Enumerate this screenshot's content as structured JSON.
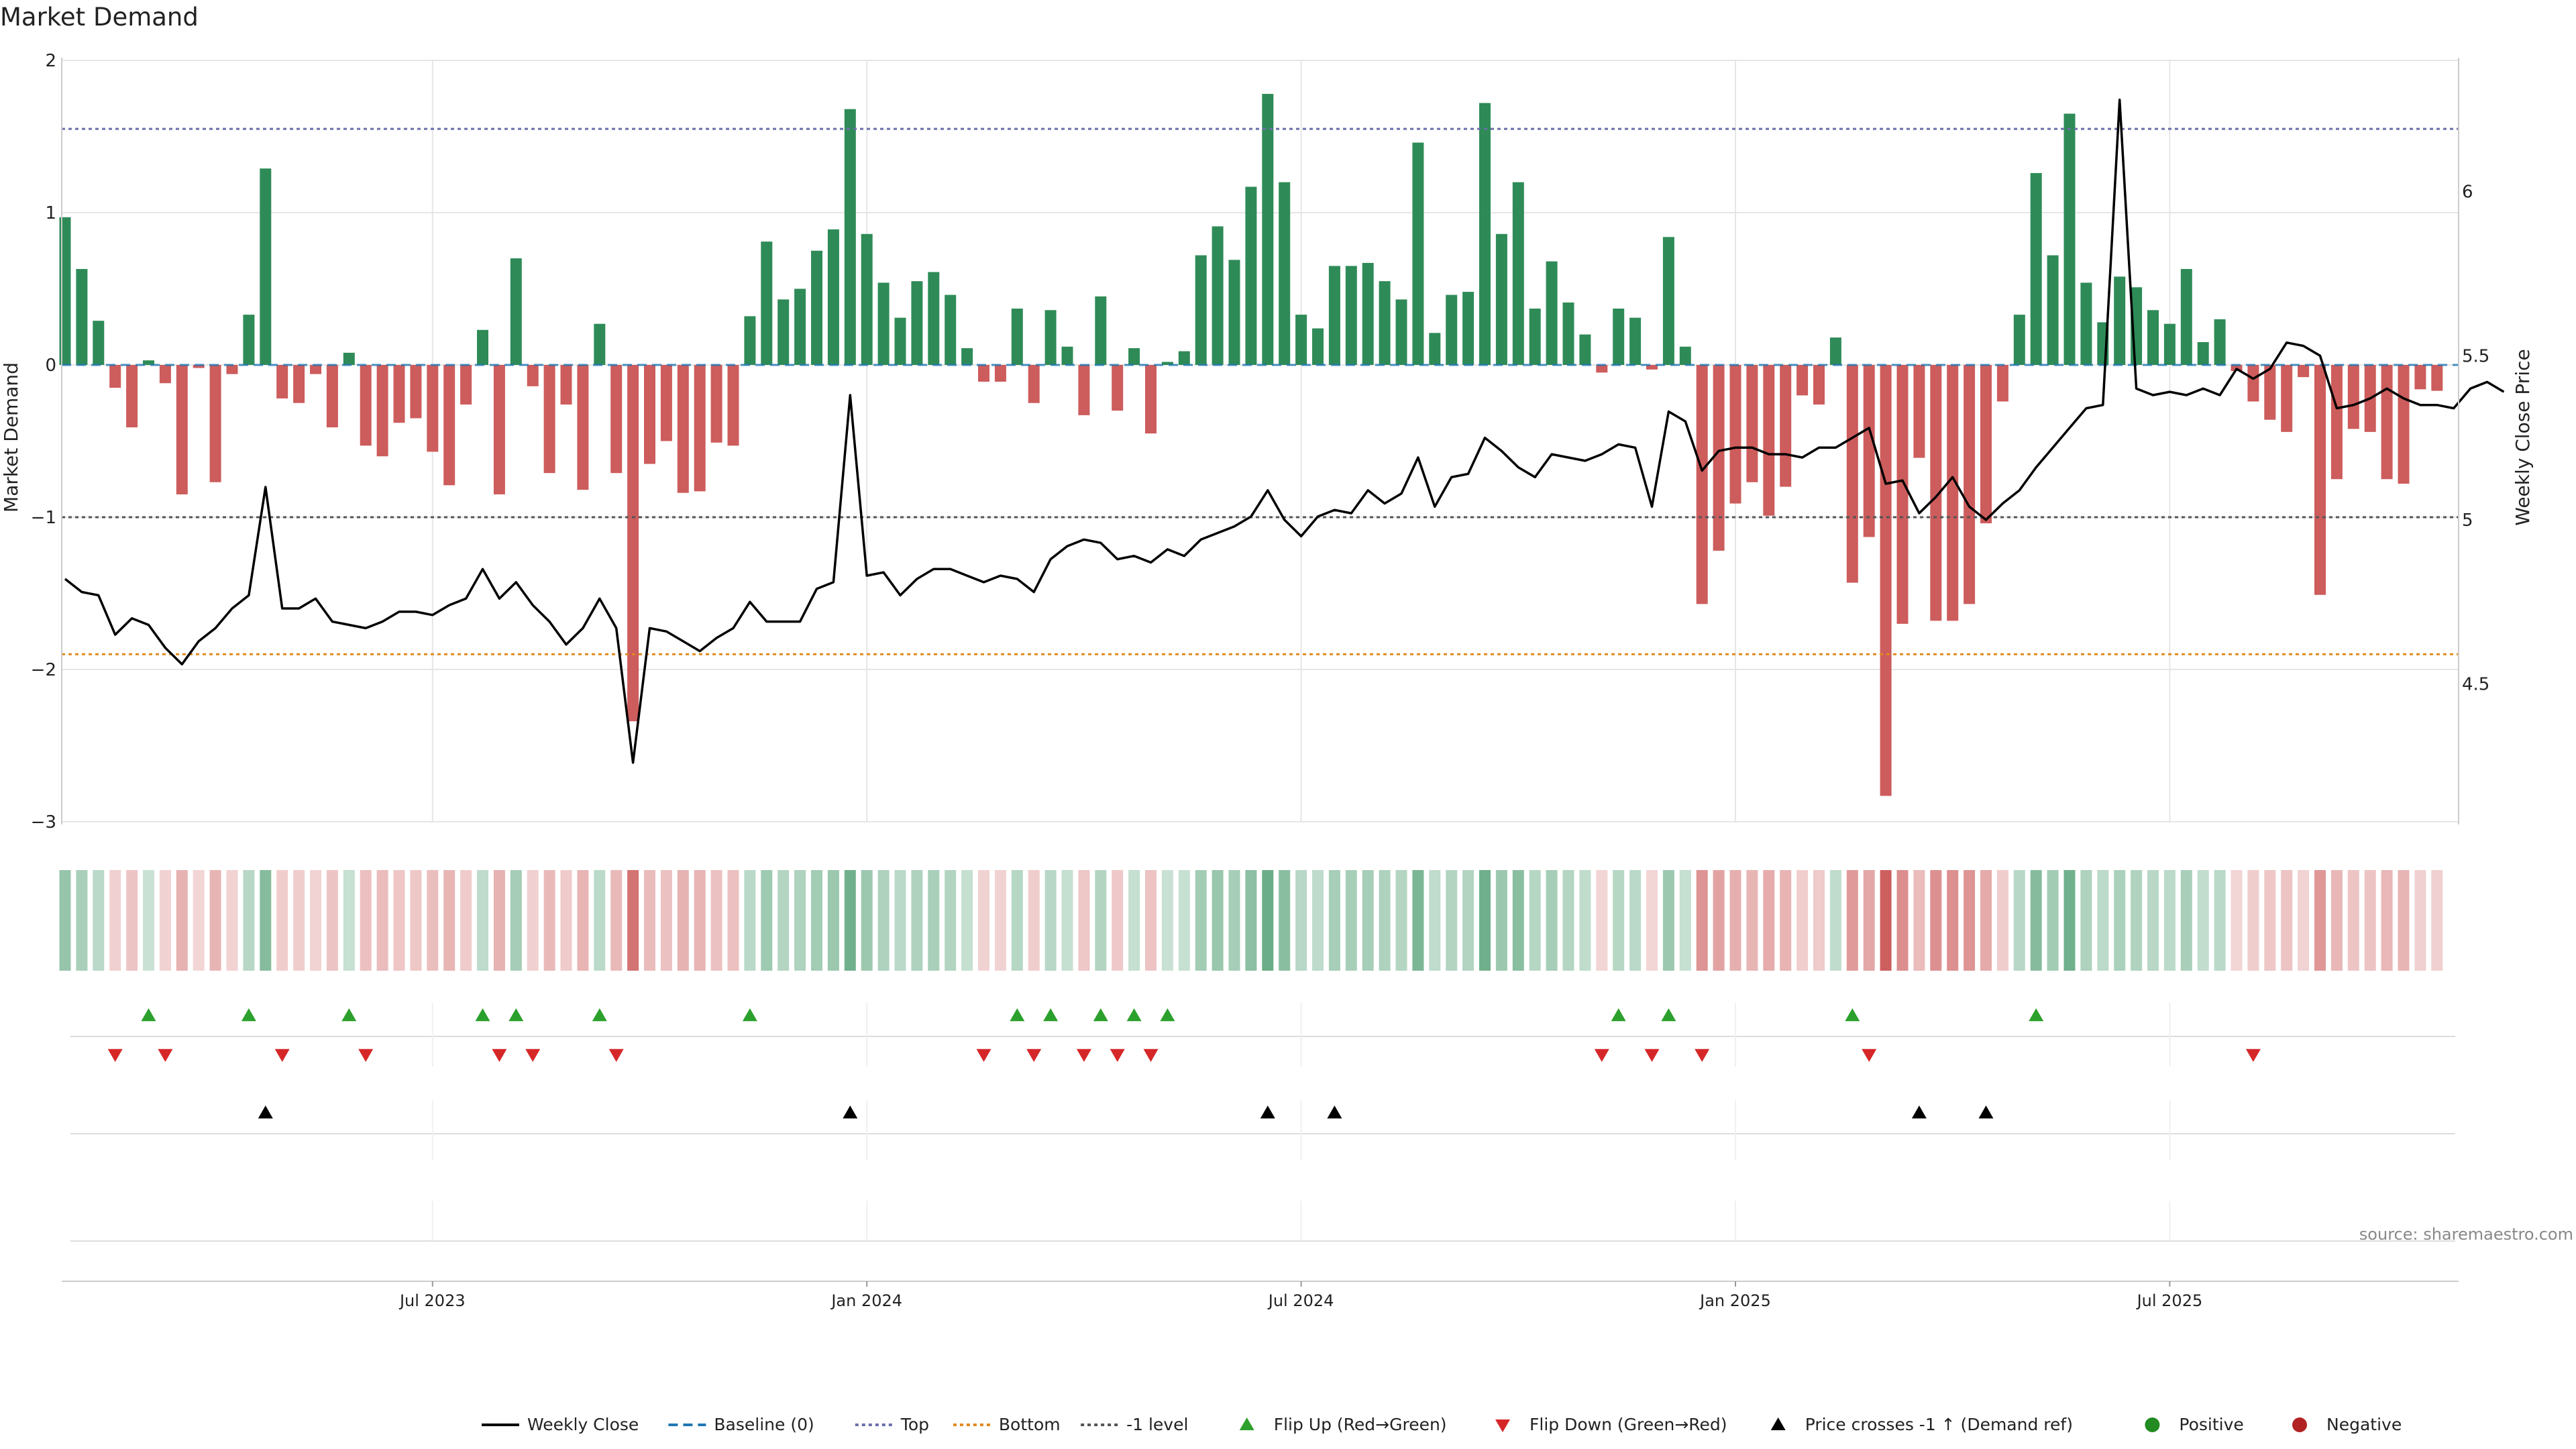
{
  "title": "Market Demand",
  "source": "source: sharemaestro.com",
  "colors": {
    "positive": "#2e8b57",
    "negative": "#cd5c5c",
    "price_line": "#000000",
    "baseline": "#1f77b4",
    "top_line": "#6b6fa8",
    "bottom_line": "#e08a1e",
    "minus1_line": "#555555",
    "flip_up": "#2ca02c",
    "flip_down": "#d62728",
    "cross": "#000000",
    "grid": "#e6e6e6",
    "legend_positive": "#228b22",
    "legend_negative": "#b22222"
  },
  "chart_data": {
    "type": "bar",
    "title": "Market Demand",
    "ylabel": "Market Demand",
    "y2label": "Weekly Close Price",
    "ylim": [
      -3,
      2
    ],
    "y2lim": [
      4.08,
      6.4
    ],
    "yticks": [
      2,
      1,
      0,
      -1,
      -2,
      -3
    ],
    "ytick_labels": [
      "2",
      "1",
      "0",
      "−1",
      "−2",
      "−3"
    ],
    "y2ticks": [
      6,
      5.5,
      5,
      4.5
    ],
    "y2tick_labels": [
      "6",
      "5.5",
      "5",
      "4.5"
    ],
    "xticks": [
      {
        "week": 22,
        "label": "Jul 2023"
      },
      {
        "week": 48,
        "label": "Jan 2024"
      },
      {
        "week": 74,
        "label": "Jul 2024"
      },
      {
        "week": 100,
        "label": "Jan 2025"
      },
      {
        "week": 126,
        "label": "Jul 2025"
      }
    ],
    "reference_lines": {
      "baseline": 0,
      "top": 1.55,
      "bottom": -1.9,
      "minus1": -1
    },
    "demand": [
      0.97,
      0.63,
      0.29,
      -0.15,
      -0.41,
      0.03,
      -0.12,
      -0.85,
      -0.02,
      -0.77,
      -0.06,
      0.33,
      1.29,
      -0.22,
      -0.25,
      -0.06,
      -0.41,
      0.08,
      -0.53,
      -0.6,
      -0.38,
      -0.35,
      -0.57,
      -0.79,
      -0.26,
      0.23,
      -0.85,
      0.7,
      -0.14,
      -0.71,
      -0.26,
      -0.82,
      0.27,
      -0.71,
      -2.34,
      -0.65,
      -0.5,
      -0.84,
      -0.83,
      -0.51,
      -0.53,
      0.32,
      0.81,
      0.43,
      0.5,
      0.75,
      0.89,
      1.68,
      0.86,
      0.54,
      0.31,
      0.55,
      0.61,
      0.46,
      0.11,
      -0.11,
      -0.11,
      0.37,
      -0.25,
      0.36,
      0.12,
      -0.33,
      0.45,
      -0.3,
      0.11,
      -0.45,
      0.02,
      0.09,
      0.72,
      0.91,
      0.69,
      1.17,
      1.78,
      1.2,
      0.33,
      0.24,
      0.65,
      0.65,
      0.67,
      0.55,
      0.43,
      1.46,
      0.21,
      0.46,
      0.48,
      1.72,
      0.86,
      1.2,
      0.37,
      0.68,
      0.41,
      0.2,
      -0.05,
      0.37,
      0.31,
      -0.03,
      0.84,
      0.12,
      -1.57,
      -1.22,
      -0.91,
      -0.77,
      -0.99,
      -0.8,
      -0.2,
      -0.26,
      0.18,
      -1.43,
      -1.13,
      -2.83,
      -1.7,
      -0.61,
      -1.68,
      -1.68,
      -1.57,
      -1.04,
      -0.24,
      0.33,
      1.26,
      0.72,
      1.65,
      0.54,
      0.28,
      0.58,
      0.51,
      0.36,
      0.27,
      0.63,
      0.15,
      0.3,
      -0.04,
      -0.24,
      -0.36,
      -0.44,
      -0.08,
      -1.51,
      -0.75,
      -0.42,
      -0.44,
      -0.75,
      -0.78,
      -0.16,
      -0.17
    ],
    "weekly_close": [
      4.82,
      4.78,
      4.77,
      4.65,
      4.7,
      4.68,
      4.61,
      4.56,
      4.63,
      4.67,
      4.73,
      4.77,
      5.1,
      4.73,
      4.73,
      4.76,
      4.69,
      4.68,
      4.67,
      4.69,
      4.72,
      4.72,
      4.71,
      4.74,
      4.76,
      4.85,
      4.76,
      4.81,
      4.74,
      4.69,
      4.62,
      4.67,
      4.76,
      4.67,
      4.26,
      4.67,
      4.66,
      4.63,
      4.6,
      4.64,
      4.67,
      4.75,
      4.69,
      4.69,
      4.69,
      4.79,
      4.81,
      5.38,
      4.83,
      4.84,
      4.77,
      4.82,
      4.85,
      4.85,
      4.83,
      4.81,
      4.83,
      4.82,
      4.78,
      4.88,
      4.92,
      4.94,
      4.93,
      4.88,
      4.89,
      4.87,
      4.91,
      4.89,
      4.94,
      4.96,
      4.98,
      5.01,
      5.09,
      5.0,
      4.95,
      5.01,
      5.03,
      5.02,
      5.09,
      5.05,
      5.08,
      5.19,
      5.04,
      5.13,
      5.14,
      5.25,
      5.21,
      5.16,
      5.13,
      5.2,
      5.19,
      5.18,
      5.2,
      5.23,
      5.22,
      5.04,
      5.33,
      5.3,
      5.15,
      5.21,
      5.22,
      5.22,
      5.2,
      5.2,
      5.19,
      5.22,
      5.22,
      5.25,
      5.28,
      5.11,
      5.12,
      5.02,
      5.07,
      5.13,
      5.04,
      5.0,
      5.05,
      5.09,
      5.16,
      5.22,
      5.28,
      5.34,
      5.35,
      6.28,
      5.4,
      5.38,
      5.39,
      5.38,
      5.4,
      5.38,
      5.46,
      5.43,
      5.46,
      5.54,
      5.53,
      5.5,
      5.34,
      5.35,
      5.37,
      5.4,
      5.37,
      5.35,
      5.35,
      5.34,
      5.4,
      5.42,
      5.39
    ],
    "flip_up_weeks": [
      5,
      11,
      17,
      25,
      27,
      32,
      41,
      57,
      59,
      62,
      64,
      66,
      93,
      96,
      107,
      118
    ],
    "flip_down_weeks": [
      3,
      6,
      13,
      18,
      26,
      28,
      33,
      55,
      58,
      61,
      63,
      65,
      92,
      95,
      98,
      108,
      131
    ],
    "price_cross_up_weeks": [
      12,
      47,
      72,
      76,
      111,
      115
    ]
  },
  "legend": [
    {
      "key": "weekly_close",
      "label": "Weekly Close"
    },
    {
      "key": "baseline",
      "label": "Baseline (0)"
    },
    {
      "key": "top",
      "label": "Top"
    },
    {
      "key": "bottom",
      "label": "Bottom"
    },
    {
      "key": "minus1",
      "label": "-1 level"
    },
    {
      "key": "flip_up",
      "label": "Flip Up (Red→Green)"
    },
    {
      "key": "flip_down",
      "label": "Flip Down (Green→Red)"
    },
    {
      "key": "cross",
      "label": "Price crosses -1 ↑ (Demand ref)"
    },
    {
      "key": "positive",
      "label": "Positive"
    },
    {
      "key": "negative",
      "label": "Negative"
    }
  ]
}
